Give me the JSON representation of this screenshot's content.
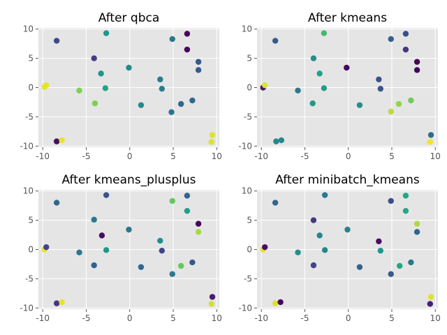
{
  "figure": {
    "background": "#ffffff",
    "axes_background": "#e5e5e5",
    "grid_color": "#ffffff",
    "tick_label_color": "#555555"
  },
  "chart_data": [
    {
      "type": "scatter",
      "title": "After qbca",
      "xlabel": "",
      "ylabel": "",
      "xlim": [
        -10.5,
        10.3
      ],
      "ylim": [
        -10.2,
        10.2
      ],
      "xticks": [
        -10,
        -5,
        0,
        5,
        10
      ],
      "yticks": [
        -10,
        -5,
        0,
        5,
        10
      ],
      "grid": true,
      "colormap": "viridis",
      "points": [
        {
          "x": -8.4,
          "y": 8.0,
          "c": 0.28
        },
        {
          "x": -4.1,
          "y": 5.0,
          "c": 0.22
        },
        {
          "x": -2.7,
          "y": 9.3,
          "c": 0.65
        },
        {
          "x": -3.3,
          "y": 2.4,
          "c": 0.65
        },
        {
          "x": -2.8,
          "y": -0.1,
          "c": 0.72
        },
        {
          "x": -0.1,
          "y": 3.4,
          "c": 0.6
        },
        {
          "x": -4.0,
          "y": -2.7,
          "c": 0.88
        },
        {
          "x": -5.8,
          "y": -0.5,
          "c": 0.88
        },
        {
          "x": -9.8,
          "y": 0.1,
          "c": 0.98
        },
        {
          "x": -9.6,
          "y": 0.4,
          "c": 0.98
        },
        {
          "x": -8.4,
          "y": -9.2,
          "c": 0.05
        },
        {
          "x": -7.8,
          "y": -9.0,
          "c": 0.98
        },
        {
          "x": 1.3,
          "y": -3.0,
          "c": 0.6
        },
        {
          "x": 3.5,
          "y": 1.4,
          "c": 0.52
        },
        {
          "x": 3.7,
          "y": -0.2,
          "c": 0.52
        },
        {
          "x": 4.9,
          "y": 8.3,
          "c": 0.48
        },
        {
          "x": 4.8,
          "y": -4.2,
          "c": 0.48
        },
        {
          "x": 5.9,
          "y": -2.8,
          "c": 0.42
        },
        {
          "x": 7.2,
          "y": -2.2,
          "c": 0.42
        },
        {
          "x": 6.6,
          "y": 9.2,
          "c": 0.02
        },
        {
          "x": 6.6,
          "y": 6.5,
          "c": 0.02
        },
        {
          "x": 7.9,
          "y": 4.4,
          "c": 0.35
        },
        {
          "x": 7.9,
          "y": 3.0,
          "c": 0.35
        },
        {
          "x": 9.5,
          "y": -8.1,
          "c": 0.97
        },
        {
          "x": 9.4,
          "y": -9.3,
          "c": 0.97
        }
      ]
    },
    {
      "type": "scatter",
      "title": "After kmeans",
      "xlabel": "",
      "ylabel": "",
      "xlim": [
        -10.5,
        10.3
      ],
      "ylim": [
        -10.2,
        10.2
      ],
      "xticks": [
        -10,
        -5,
        0,
        5,
        10
      ],
      "yticks": [
        -10,
        -5,
        0,
        5,
        10
      ],
      "grid": true,
      "colormap": "viridis",
      "points": [
        {
          "x": -8.4,
          "y": 8.0,
          "c": 0.35
        },
        {
          "x": -4.0,
          "y": 5.0,
          "c": 0.6
        },
        {
          "x": -2.8,
          "y": 9.3,
          "c": 0.8
        },
        {
          "x": -3.3,
          "y": 2.4,
          "c": 0.72
        },
        {
          "x": -2.8,
          "y": -0.1,
          "c": 0.68
        },
        {
          "x": -0.2,
          "y": 3.4,
          "c": 0.03
        },
        {
          "x": -4.1,
          "y": -2.7,
          "c": 0.68
        },
        {
          "x": -5.8,
          "y": -0.5,
          "c": 0.5
        },
        {
          "x": -9.8,
          "y": 0.0,
          "c": 0.1
        },
        {
          "x": -9.6,
          "y": 0.4,
          "c": 0.97
        },
        {
          "x": -8.3,
          "y": -9.2,
          "c": 0.58
        },
        {
          "x": -7.7,
          "y": -9.0,
          "c": 0.58
        },
        {
          "x": 1.3,
          "y": -3.0,
          "c": 0.62
        },
        {
          "x": 3.5,
          "y": 1.4,
          "c": 0.32
        },
        {
          "x": 3.7,
          "y": -0.2,
          "c": 0.32
        },
        {
          "x": 4.9,
          "y": 8.3,
          "c": 0.38
        },
        {
          "x": 4.9,
          "y": -4.1,
          "c": 0.94
        },
        {
          "x": 5.8,
          "y": -2.8,
          "c": 0.9
        },
        {
          "x": 7.2,
          "y": -2.2,
          "c": 0.86
        },
        {
          "x": 6.6,
          "y": 9.2,
          "c": 0.3
        },
        {
          "x": 6.6,
          "y": 6.5,
          "c": 0.2
        },
        {
          "x": 7.9,
          "y": 4.4,
          "c": 0.02
        },
        {
          "x": 7.9,
          "y": 3.0,
          "c": 0.02
        },
        {
          "x": 9.5,
          "y": -8.1,
          "c": 0.45
        },
        {
          "x": 9.4,
          "y": -9.3,
          "c": 0.99
        }
      ]
    },
    {
      "type": "scatter",
      "title": "After kmeans_plusplus",
      "xlabel": "",
      "ylabel": "",
      "xlim": [
        -10.5,
        10.3
      ],
      "ylim": [
        -10.2,
        10.2
      ],
      "xticks": [
        -10,
        -5,
        0,
        5,
        10
      ],
      "yticks": [
        -10,
        -5,
        0,
        5,
        10
      ],
      "grid": true,
      "colormap": "viridis",
      "points": [
        {
          "x": -8.4,
          "y": 8.0,
          "c": 0.42
        },
        {
          "x": -4.1,
          "y": 5.1,
          "c": 0.5
        },
        {
          "x": -2.7,
          "y": 9.3,
          "c": 0.32
        },
        {
          "x": -3.2,
          "y": 2.4,
          "c": 0.05
        },
        {
          "x": -2.7,
          "y": -0.1,
          "c": 0.65
        },
        {
          "x": -0.1,
          "y": 3.4,
          "c": 0.5
        },
        {
          "x": -4.1,
          "y": -2.7,
          "c": 0.4
        },
        {
          "x": -5.8,
          "y": -0.5,
          "c": 0.5
        },
        {
          "x": -9.8,
          "y": 0.0,
          "c": 0.98
        },
        {
          "x": -9.6,
          "y": 0.4,
          "c": 0.25
        },
        {
          "x": -8.4,
          "y": -9.2,
          "c": 0.2
        },
        {
          "x": -7.8,
          "y": -9.0,
          "c": 0.98
        },
        {
          "x": 1.3,
          "y": -3.0,
          "c": 0.42
        },
        {
          "x": 3.5,
          "y": 1.5,
          "c": 0.62
        },
        {
          "x": 3.7,
          "y": -0.2,
          "c": 0.25
        },
        {
          "x": 4.9,
          "y": 8.3,
          "c": 0.85
        },
        {
          "x": 4.9,
          "y": -4.2,
          "c": 0.5
        },
        {
          "x": 5.9,
          "y": -2.8,
          "c": 0.85
        },
        {
          "x": 7.2,
          "y": -2.2,
          "c": 0.35
        },
        {
          "x": 6.6,
          "y": 9.2,
          "c": 0.4
        },
        {
          "x": 6.6,
          "y": 6.6,
          "c": 0.7
        },
        {
          "x": 7.9,
          "y": 4.4,
          "c": 0.02
        },
        {
          "x": 7.9,
          "y": 3.0,
          "c": 0.92
        },
        {
          "x": 9.5,
          "y": -8.1,
          "c": 0.1
        },
        {
          "x": 9.4,
          "y": -9.3,
          "c": 0.96
        }
      ]
    },
    {
      "type": "scatter",
      "title": "After minibatch_kmeans",
      "xlabel": "",
      "ylabel": "",
      "xlim": [
        -10.5,
        10.3
      ],
      "ylim": [
        -10.2,
        10.2
      ],
      "xticks": [
        -10,
        -5,
        0,
        5,
        10
      ],
      "yticks": [
        -10,
        -5,
        0,
        5,
        10
      ],
      "grid": true,
      "colormap": "viridis",
      "points": [
        {
          "x": -8.4,
          "y": 8.0,
          "c": 0.42
        },
        {
          "x": -4.0,
          "y": 5.0,
          "c": 0.2
        },
        {
          "x": -2.7,
          "y": 9.3,
          "c": 0.5
        },
        {
          "x": -3.3,
          "y": 2.4,
          "c": 0.58
        },
        {
          "x": -2.7,
          "y": -0.1,
          "c": 0.58
        },
        {
          "x": -0.1,
          "y": 3.4,
          "c": 0.55
        },
        {
          "x": -4.0,
          "y": -2.7,
          "c": 0.25
        },
        {
          "x": -5.8,
          "y": -0.5,
          "c": 0.62
        },
        {
          "x": -9.8,
          "y": 0.0,
          "c": 0.98
        },
        {
          "x": -9.6,
          "y": 0.4,
          "c": 0.05
        },
        {
          "x": -8.4,
          "y": -9.2,
          "c": 0.97
        },
        {
          "x": -7.8,
          "y": -9.0,
          "c": 0.03
        },
        {
          "x": 1.3,
          "y": -3.0,
          "c": 0.4
        },
        {
          "x": 3.5,
          "y": 1.4,
          "c": 0.05
        },
        {
          "x": 3.7,
          "y": -0.2,
          "c": 0.65
        },
        {
          "x": 4.9,
          "y": 8.3,
          "c": 0.3
        },
        {
          "x": 4.9,
          "y": -4.2,
          "c": 0.35
        },
        {
          "x": 5.9,
          "y": -2.8,
          "c": 0.75
        },
        {
          "x": 7.2,
          "y": -2.2,
          "c": 0.5
        },
        {
          "x": 6.6,
          "y": 9.2,
          "c": 0.75
        },
        {
          "x": 6.6,
          "y": 6.6,
          "c": 0.75
        },
        {
          "x": 7.9,
          "y": 4.4,
          "c": 0.93
        },
        {
          "x": 7.9,
          "y": 3.0,
          "c": 0.4
        },
        {
          "x": 9.5,
          "y": -8.1,
          "c": 0.97
        },
        {
          "x": 9.4,
          "y": -9.3,
          "c": 0.12
        }
      ]
    }
  ]
}
